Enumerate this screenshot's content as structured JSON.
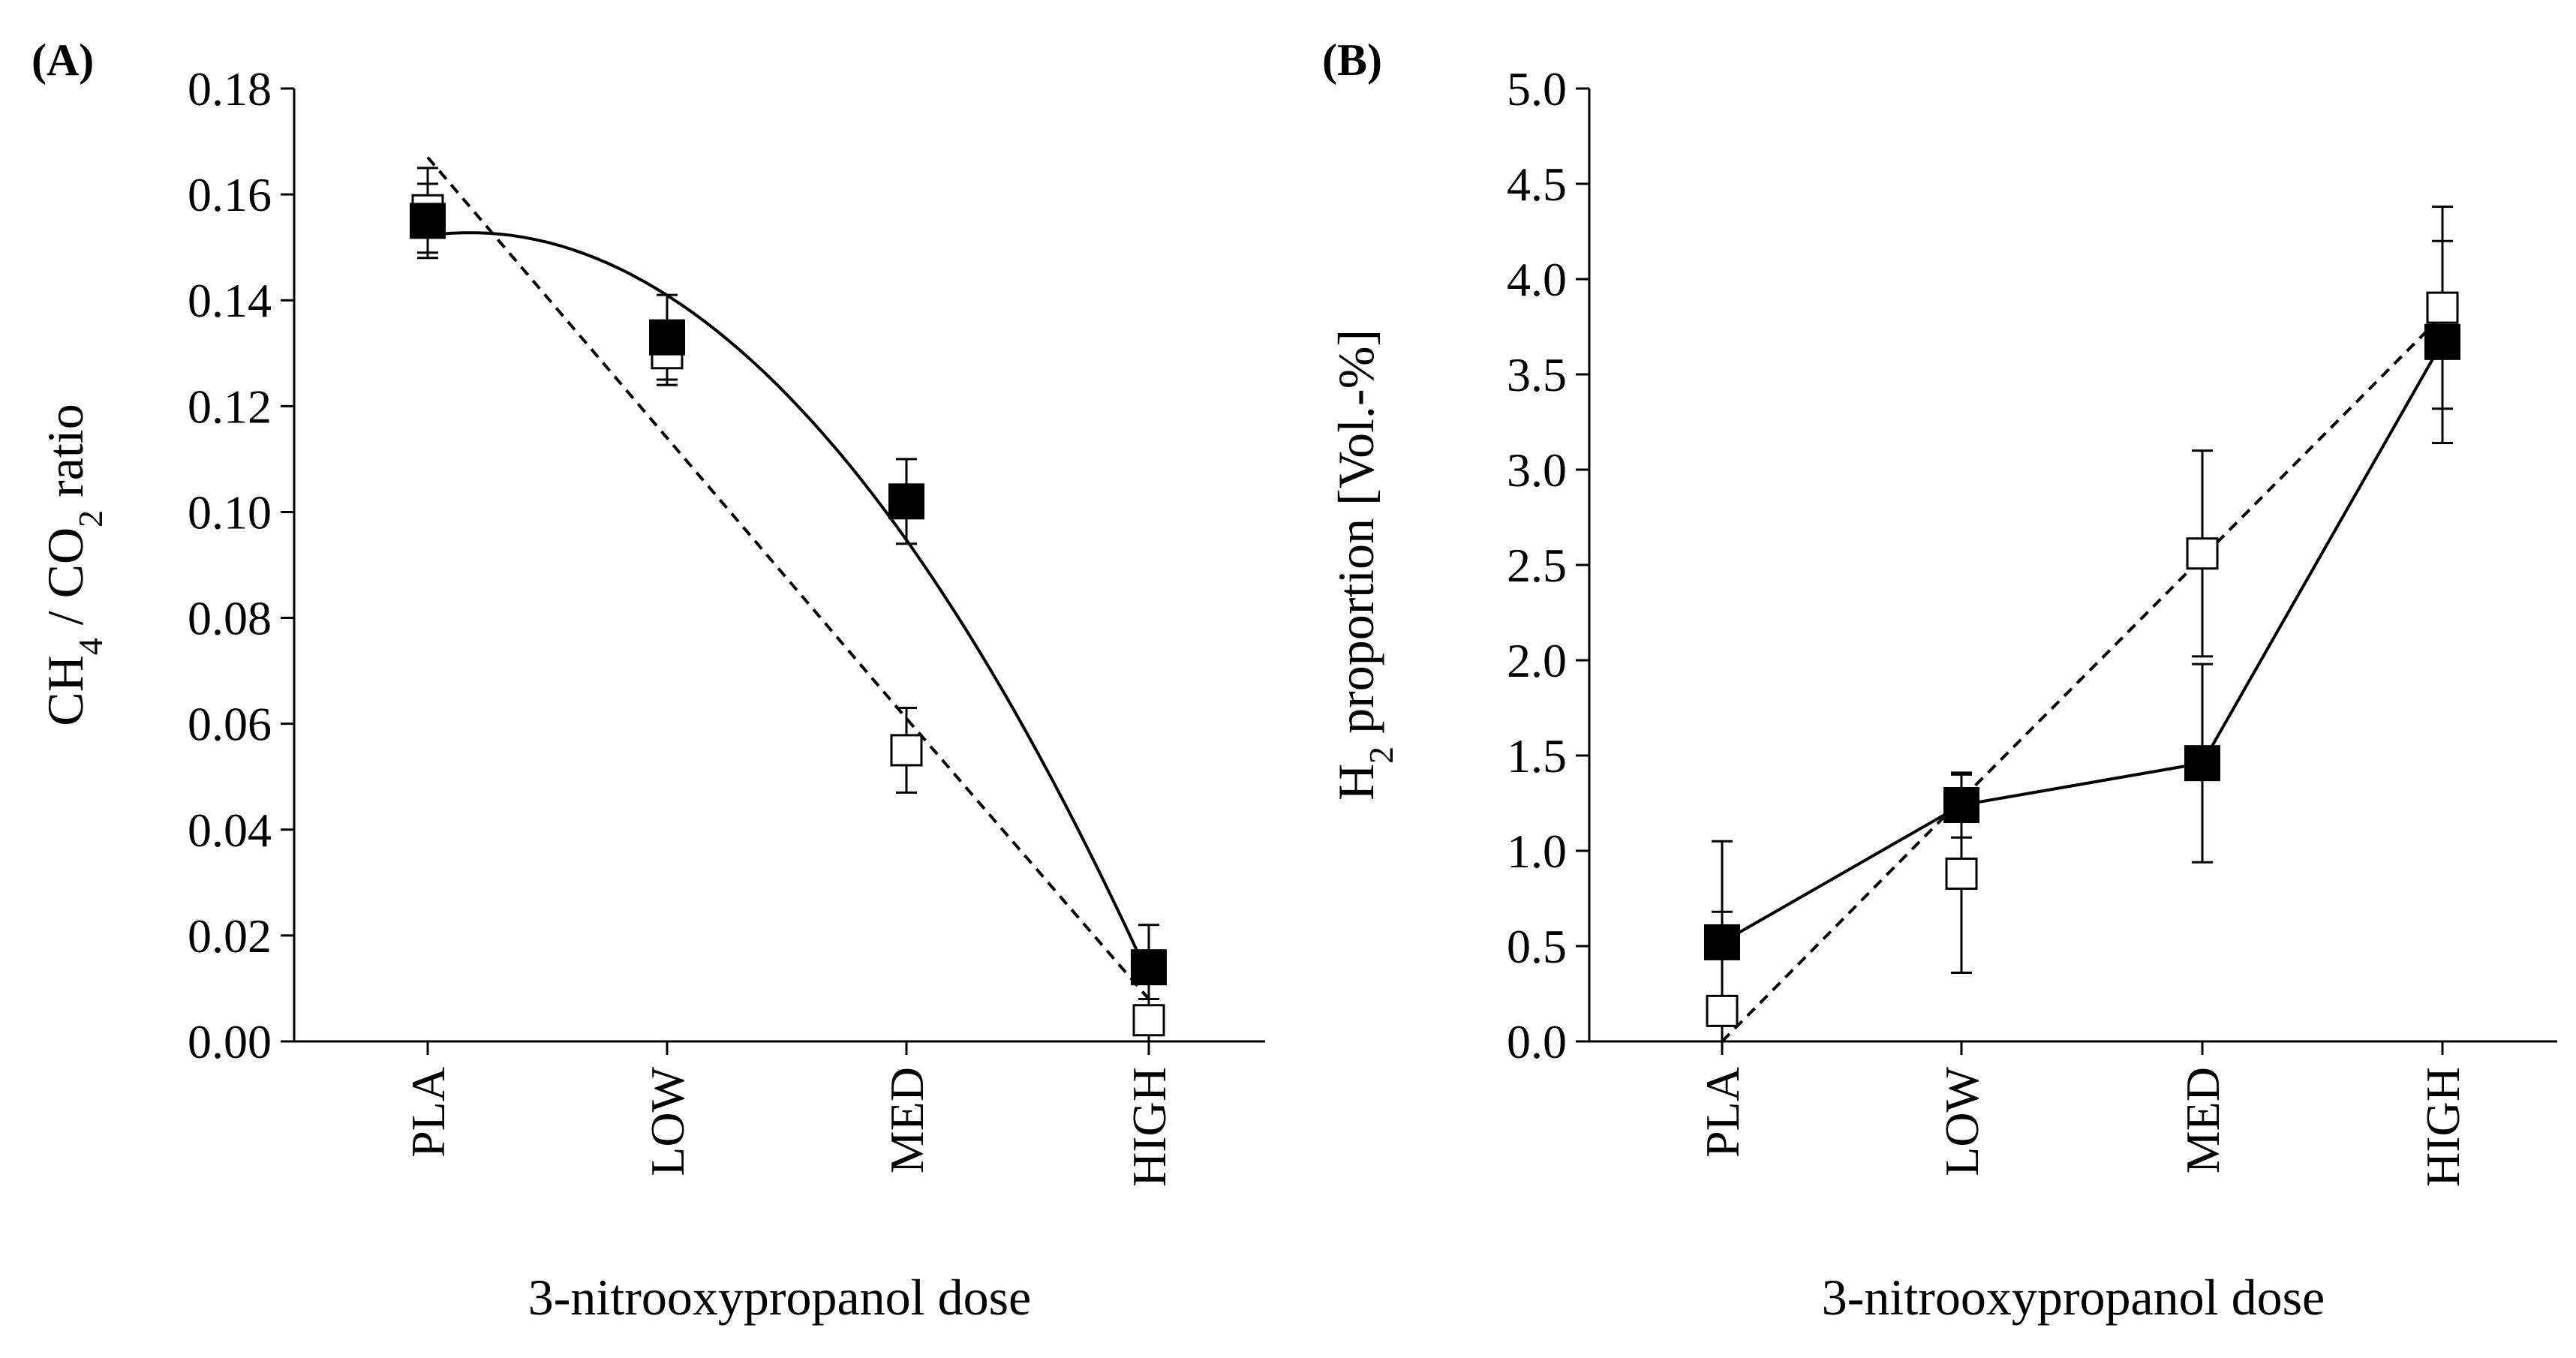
{
  "chart_data": [
    {
      "type": "scatter",
      "panel_label": "(A)",
      "title": "",
      "categories": [
        "PLA",
        "LOW",
        "MED",
        "HIGH"
      ],
      "xlabel": "3-nitrooxypropanol dose",
      "ylabel": {
        "parts": [
          "CH",
          "4",
          " / CO",
          "2",
          " ratio"
        ]
      },
      "ylim": [
        0,
        0.18
      ],
      "yticks": [
        "0.00",
        "0.02",
        "0.04",
        "0.06",
        "0.08",
        "0.10",
        "0.12",
        "0.14",
        "0.16",
        "0.18"
      ],
      "series": [
        {
          "name": "filled squares",
          "marker": "filled-square",
          "line": "solid-quadratic-trend",
          "values": [
            0.155,
            0.133,
            0.102,
            0.014
          ],
          "errors": [
            0.007,
            0.008,
            0.008,
            0.008
          ],
          "trend": [
            0.1525,
            0.14,
            0.095,
            0.012
          ]
        },
        {
          "name": "open squares",
          "marker": "open-square",
          "line": "dashed-linear-trend",
          "values": [
            0.157,
            0.13,
            0.055,
            0.004
          ],
          "errors": [
            0.008,
            0.006,
            0.008,
            0.004
          ],
          "trend": [
            0.167,
            0.114,
            0.061,
            0.008
          ]
        }
      ]
    },
    {
      "type": "line",
      "panel_label": "(B)",
      "title": "",
      "categories": [
        "PLA",
        "LOW",
        "MED",
        "HIGH"
      ],
      "xlabel": "3-nitrooxypropanol dose",
      "ylabel": {
        "parts": [
          "H",
          "2",
          " proportion [Vol.-%]"
        ]
      },
      "ylim": [
        0,
        5
      ],
      "yticks": [
        "0.0",
        "0.5",
        "1.0",
        "1.5",
        "2.0",
        "2.5",
        "3.0",
        "3.5",
        "4.0",
        "4.5",
        "5.0"
      ],
      "series": [
        {
          "name": "filled squares",
          "marker": "filled-square",
          "line": "solid",
          "values": [
            0.52,
            1.24,
            1.46,
            3.67
          ],
          "errors": [
            0.53,
            0.17,
            0.52,
            0.53
          ]
        },
        {
          "name": "open squares",
          "marker": "open-square",
          "line": "dashed-linear-trend",
          "values": [
            0.16,
            0.88,
            2.56,
            3.85
          ],
          "errors": [
            0.52,
            0.52,
            0.54,
            0.53
          ],
          "trend": [
            0.0,
            1.27,
            2.54,
            3.81
          ]
        }
      ]
    }
  ]
}
